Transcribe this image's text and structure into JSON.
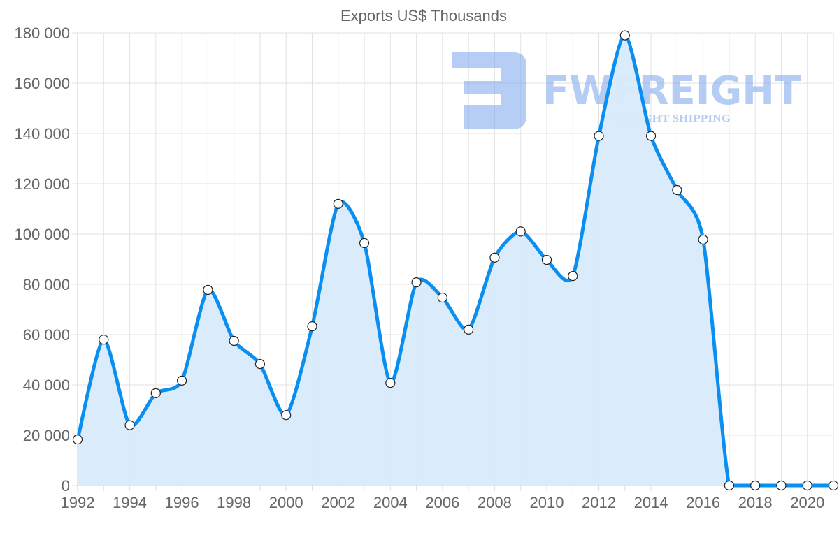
{
  "chart_data": {
    "type": "area",
    "title": "Exports US$ Thousands",
    "xlabel": "",
    "ylabel": "",
    "x": [
      1992,
      1993,
      1994,
      1995,
      1996,
      1997,
      1998,
      1999,
      2000,
      2001,
      2002,
      2003,
      2004,
      2005,
      2006,
      2007,
      2008,
      2009,
      2010,
      2011,
      2012,
      2013,
      2014,
      2015,
      2016,
      2017,
      2018,
      2019,
      2020,
      2021
    ],
    "series": [
      {
        "name": "Exports US$ Thousands",
        "color": "#0a8ff0",
        "fill": "#d8ebfc",
        "values": [
          18300,
          58000,
          24000,
          36700,
          41700,
          77800,
          57500,
          48300,
          28000,
          63300,
          112000,
          96400,
          40800,
          80800,
          74700,
          62000,
          90600,
          101000,
          89700,
          83300,
          139000,
          179000,
          139000,
          117500,
          97800,
          0,
          0,
          0,
          0,
          0
        ]
      }
    ],
    "ylim": [
      0,
      180000
    ],
    "yticks": [
      0,
      20000,
      40000,
      60000,
      80000,
      100000,
      120000,
      140000,
      160000,
      180000
    ],
    "ytick_labels": [
      "0",
      "20 000",
      "40 000",
      "60 000",
      "80 000",
      "100 000",
      "120 000",
      "140 000",
      "160 000",
      "180 000"
    ],
    "xtick_labels": [
      "1992",
      "1994",
      "1996",
      "1998",
      "2000",
      "2002",
      "2004",
      "2006",
      "2008",
      "2010",
      "2012",
      "2014",
      "2016",
      "2018",
      "2020"
    ],
    "grid": true,
    "legend": "none"
  },
  "watermark": {
    "brand": "FWFREIGHT",
    "tagline": "FREIGHT SHIPPING",
    "color": "#7aa6ee"
  }
}
